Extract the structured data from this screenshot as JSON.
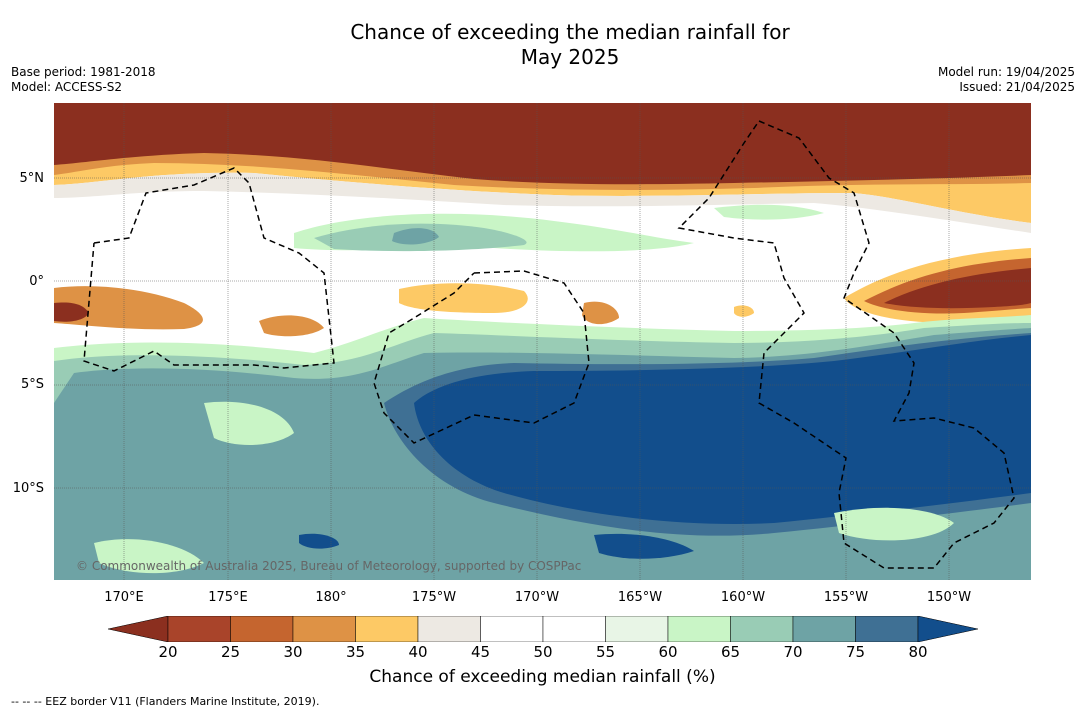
{
  "title": {
    "line1": "Chance of exceeding the median rainfall for",
    "line2": "May 2025"
  },
  "meta": {
    "base_period": "Base period: 1981-2018",
    "model": "Model: ACCESS-S2",
    "model_run": "Model run: 19/04/2025",
    "issued": "Issued: 21/04/2025"
  },
  "axes": {
    "lat_labels": [
      "5°N",
      "0°",
      "5°S",
      "10°S"
    ],
    "lon_labels": [
      "170°E",
      "175°E",
      "180°",
      "175°W",
      "170°W",
      "165°W",
      "160°W",
      "155°W",
      "150°W"
    ]
  },
  "copyright": "© Commonwealth of Australia 2025, Bureau of Meteorology, supported by COSPPac",
  "colorbar": {
    "label": "Chance of exceeding median rainfall (%)",
    "ticks": [
      "20",
      "25",
      "30",
      "35",
      "40",
      "45",
      "50",
      "55",
      "60",
      "65",
      "70",
      "75",
      "80"
    ],
    "colors": {
      "lt20": "#8b2f1f",
      "b20_25": "#a9442a",
      "b25_30": "#c5652f",
      "b30_35": "#de9245",
      "b35_40": "#fdc965",
      "b40_45": "#ede9e3",
      "b45_50": "#ffffff",
      "b50_55": "#ffffff",
      "b55_60": "#e8f5e6",
      "b60_65": "#c9f5c6",
      "b65_70": "#99ccb5",
      "b70_75": "#6ea3a5",
      "b75_80": "#3f7094",
      "gt80": "#124e8c"
    }
  },
  "legend_note": "--  --  -- EEZ border V11 (Flanders Marine Institute, 2019)."
}
